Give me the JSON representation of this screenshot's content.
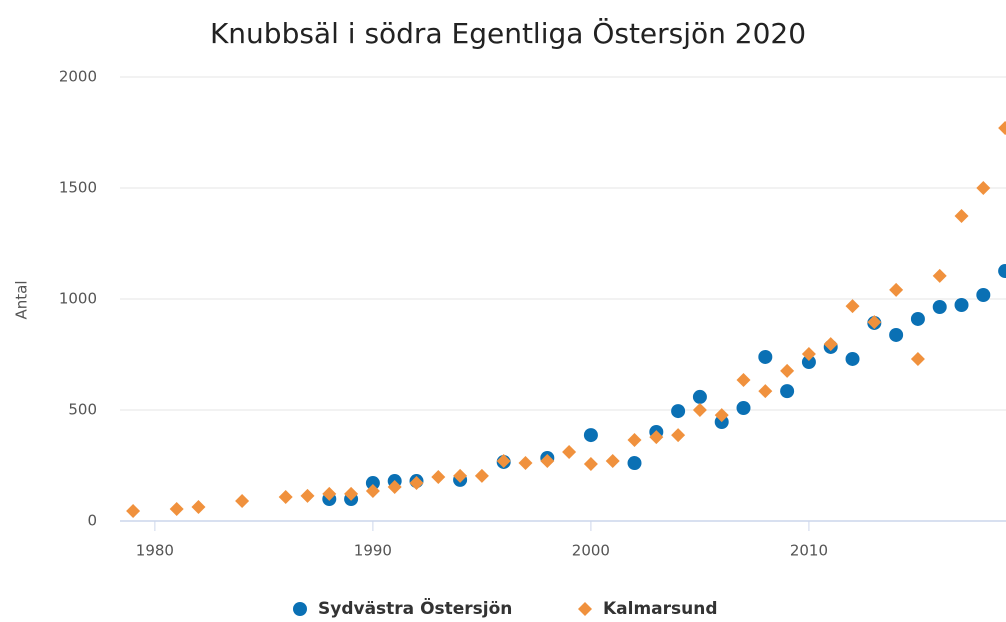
{
  "chart_data": {
    "type": "scatter",
    "title": "Knubbsäl i södra Egentliga Östersjön 2020",
    "y_label": "Antal",
    "xlim": [
      1978.4,
      2019.04
    ],
    "xticks": [
      1980,
      1990,
      2000,
      2010
    ],
    "ylim": [
      0,
      2000
    ],
    "yticks": [
      0,
      500,
      1000,
      1500,
      2000
    ],
    "grid": true,
    "series": [
      {
        "name": "Sydvästra Östersjön",
        "color": "#0a70b4",
        "marker": "circle",
        "x": [
          1988,
          1989,
          1990,
          1991,
          1992,
          1994,
          1996,
          1998,
          2000,
          2002,
          2003,
          2004,
          2005,
          2006,
          2007,
          2008,
          2009,
          2010,
          2011,
          2012,
          2013,
          2014,
          2015,
          2016,
          2017,
          2018,
          2019
        ],
        "values": [
          99,
          99,
          171,
          180,
          180,
          185,
          266,
          284,
          387,
          261,
          401,
          495,
          559,
          446,
          509,
          739,
          585,
          716,
          784,
          730,
          892,
          838,
          910,
          964,
          973,
          1018,
          1126
        ]
      },
      {
        "name": "Kalmarsund",
        "color": "#f0913d",
        "marker": "diamond",
        "x": [
          1979,
          1981,
          1982,
          1984,
          1986,
          1987,
          1988,
          1989,
          1990,
          1991,
          1992,
          1993,
          1994,
          1995,
          1996,
          1997,
          1998,
          1999,
          2000,
          2001,
          2002,
          2003,
          2004,
          2005,
          2006,
          2007,
          2008,
          2009,
          2010,
          2011,
          2012,
          2013,
          2014,
          2015,
          2016,
          2017,
          2018,
          2019
        ],
        "values": [
          45,
          54,
          63,
          90,
          108,
          113,
          122,
          122,
          135,
          153,
          171,
          198,
          203,
          203,
          270,
          261,
          270,
          311,
          257,
          270,
          365,
          378,
          387,
          500,
          477,
          635,
          585,
          676,
          752,
          797,
          968,
          896,
          1041,
          730,
          1104,
          1374,
          1500,
          1770
        ]
      }
    ]
  }
}
